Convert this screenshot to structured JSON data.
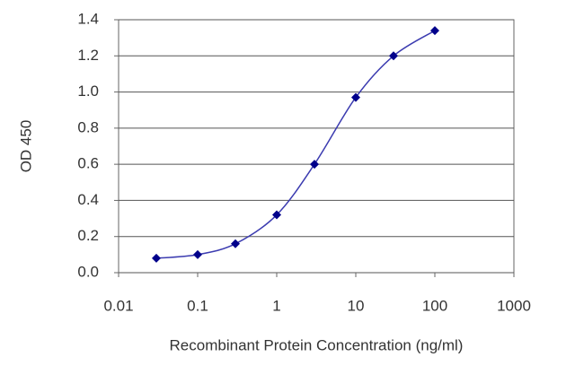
{
  "chart_data": {
    "type": "line",
    "x_label": "Recombinant Protein Concentration (ng/ml)",
    "y_label": "OD 450",
    "x": [
      0.03,
      0.1,
      0.3,
      1,
      3,
      10,
      30,
      100
    ],
    "values": [
      0.08,
      0.1,
      0.16,
      0.32,
      0.6,
      0.97,
      1.2,
      1.34
    ],
    "color": "#3b3bb0",
    "marker_color": "#00008b",
    "xscale": "log",
    "xlim": [
      0.01,
      1000
    ],
    "xticks": [
      0.01,
      0.1,
      1,
      10,
      100,
      1000
    ],
    "ylim": [
      0,
      1.4
    ],
    "yticks": [
      {
        "value": 0,
        "label": "0.0"
      },
      0.2,
      0.4,
      0.6,
      0.8,
      {
        "value": 1,
        "label": "1.0"
      },
      1.2,
      1.4
    ],
    "grid": true
  }
}
